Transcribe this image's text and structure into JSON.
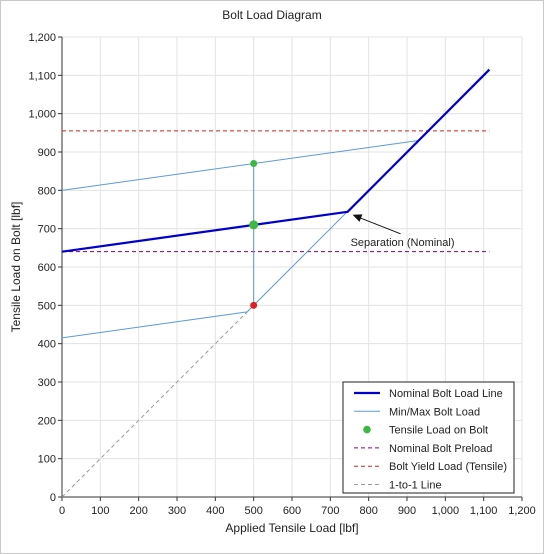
{
  "chart_data": {
    "type": "line",
    "title": "Bolt Load Diagram",
    "xlabel": "Applied Tensile Load [lbf]",
    "ylabel": "Tensile Load on Bolt [lbf]",
    "xlim": [
      0,
      1200
    ],
    "ylim": [
      0,
      1200
    ],
    "x_ticks": [
      0,
      100,
      200,
      300,
      400,
      500,
      600,
      700,
      800,
      900,
      1000,
      1100,
      1200
    ],
    "y_ticks": [
      0,
      100,
      200,
      300,
      400,
      500,
      600,
      700,
      800,
      900,
      1000,
      1100,
      1200
    ],
    "tick_labels_x": [
      "0",
      "100",
      "200",
      "300",
      "400",
      "500",
      "600",
      "700",
      "800",
      "900",
      "1,000",
      "1,100",
      "1,200"
    ],
    "tick_labels_y": [
      "0",
      "100",
      "200",
      "300",
      "400",
      "500",
      "600",
      "700",
      "800",
      "900",
      "1,000",
      "1,100",
      "1,200"
    ],
    "grid": true,
    "legend_position": "bottom-right",
    "series": [
      {
        "name": "Nominal Bolt Load Line",
        "style": "solid-thick",
        "color": "#0000cc",
        "x": [
          0,
          745,
          1115
        ],
        "y": [
          640,
          744,
          1115
        ]
      },
      {
        "name": "Min/Max Bolt Load",
        "style": "solid-thin",
        "color": "#5b9bd5",
        "segments": [
          {
            "x": [
              0,
              930
            ],
            "y": [
              800,
              930
            ]
          },
          {
            "x": [
              0,
              483,
              745
            ],
            "y": [
              415,
              483,
              745
            ]
          },
          {
            "x": [
              500,
              500
            ],
            "y": [
              500,
              870
            ]
          }
        ]
      },
      {
        "name": "Tensile Load on Bolt",
        "style": "points",
        "color": "#3cb843",
        "points": [
          {
            "x": 500,
            "y": 870,
            "color": "#3cb843",
            "size": 3.5
          },
          {
            "x": 500,
            "y": 710,
            "color": "#3cb843",
            "size": 4.5
          },
          {
            "x": 500,
            "y": 500,
            "color": "#dd2222",
            "size": 3.5
          }
        ]
      },
      {
        "name": "Nominal Bolt Preload",
        "style": "dashed",
        "color": "#800080",
        "x": [
          0,
          1115
        ],
        "y": [
          640,
          640
        ]
      },
      {
        "name": "Bolt Yield Load (Tensile)",
        "style": "dashed",
        "color": "#cc2222",
        "x": [
          0,
          1115
        ],
        "y": [
          955,
          955
        ]
      },
      {
        "name": "1-to-1 Line",
        "style": "dashed",
        "color": "#9a9a9a",
        "x": [
          0,
          483
        ],
        "y": [
          0,
          483
        ]
      }
    ],
    "annotations": [
      {
        "text": "Separation (Nominal)",
        "arrow_to": {
          "x": 745,
          "y": 744
        }
      }
    ]
  }
}
